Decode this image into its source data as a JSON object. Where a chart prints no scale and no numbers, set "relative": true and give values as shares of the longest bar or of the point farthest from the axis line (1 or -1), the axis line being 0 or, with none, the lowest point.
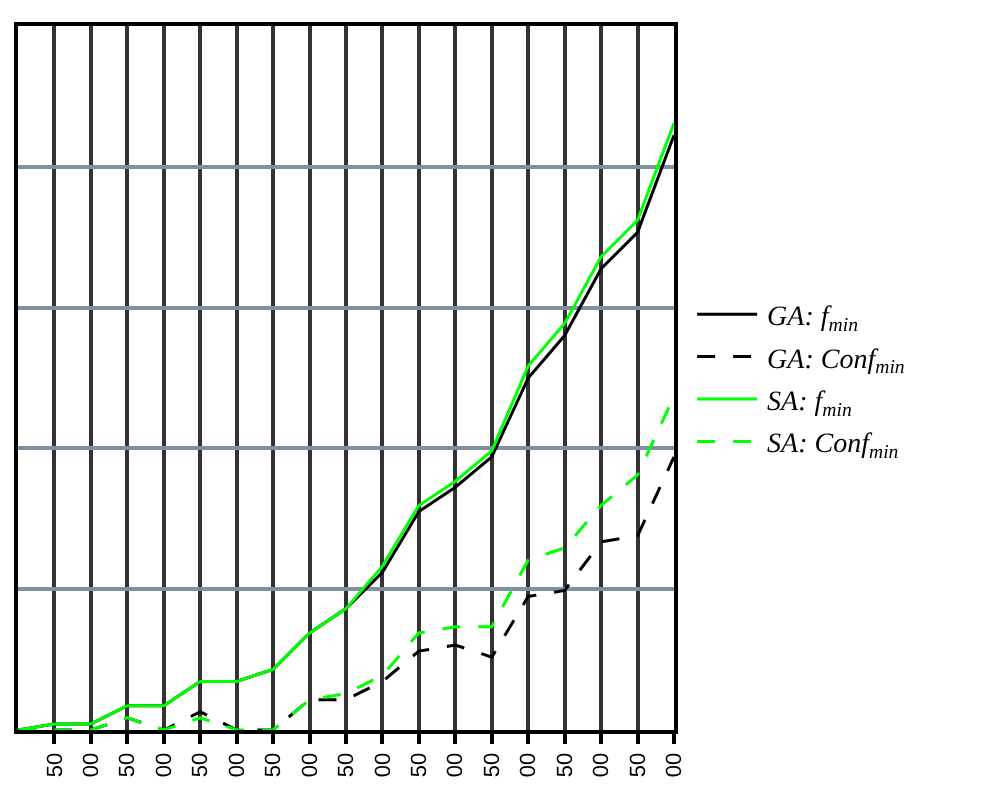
{
  "chart_data": {
    "type": "line",
    "relative": true,
    "categories": [
      null,
      "50",
      "00",
      "50",
      "00",
      "50",
      "00",
      "50",
      "00",
      "50",
      "00",
      "50",
      "00",
      "50",
      "00",
      "50",
      "00",
      "50",
      "00"
    ],
    "series": [
      {
        "name": "GA: f$_{min}$",
        "color": "#000000",
        "line_style": "solid",
        "values": [
          0.0,
          0.01,
          0.01,
          0.04,
          0.04,
          0.08,
          0.08,
          0.1,
          0.16,
          0.2,
          0.26,
          0.36,
          0.4,
          0.45,
          0.58,
          0.65,
          0.76,
          0.82,
          0.98
        ]
      },
      {
        "name": "GA: Conf$_{min}$",
        "color": "#000000",
        "line_style": "dashed",
        "values": [
          0.0,
          0.0,
          0.0,
          0.02,
          0.0,
          0.03,
          0.0,
          0.0,
          0.05,
          0.05,
          0.08,
          0.13,
          0.14,
          0.12,
          0.22,
          0.23,
          0.31,
          0.32,
          0.45
        ]
      },
      {
        "name": "SA: f$_{min}$",
        "color": "#00ff00",
        "line_style": "solid",
        "values": [
          0.0,
          0.01,
          0.01,
          0.04,
          0.04,
          0.08,
          0.08,
          0.1,
          0.16,
          0.2,
          0.27,
          0.37,
          0.41,
          0.46,
          0.6,
          0.67,
          0.78,
          0.84,
          1.0
        ]
      },
      {
        "name": "SA: Conf$_{min}$",
        "color": "#00ff00",
        "line_style": "dashed",
        "values": [
          0.0,
          0.0,
          0.0,
          0.02,
          0.0,
          0.02,
          0.0,
          0.0,
          0.05,
          0.06,
          0.09,
          0.16,
          0.17,
          0.17,
          0.28,
          0.3,
          0.37,
          0.42,
          0.55
        ]
      }
    ],
    "grid": true,
    "legend": "right",
    "tick_labels": "x",
    "marker": "none"
  }
}
